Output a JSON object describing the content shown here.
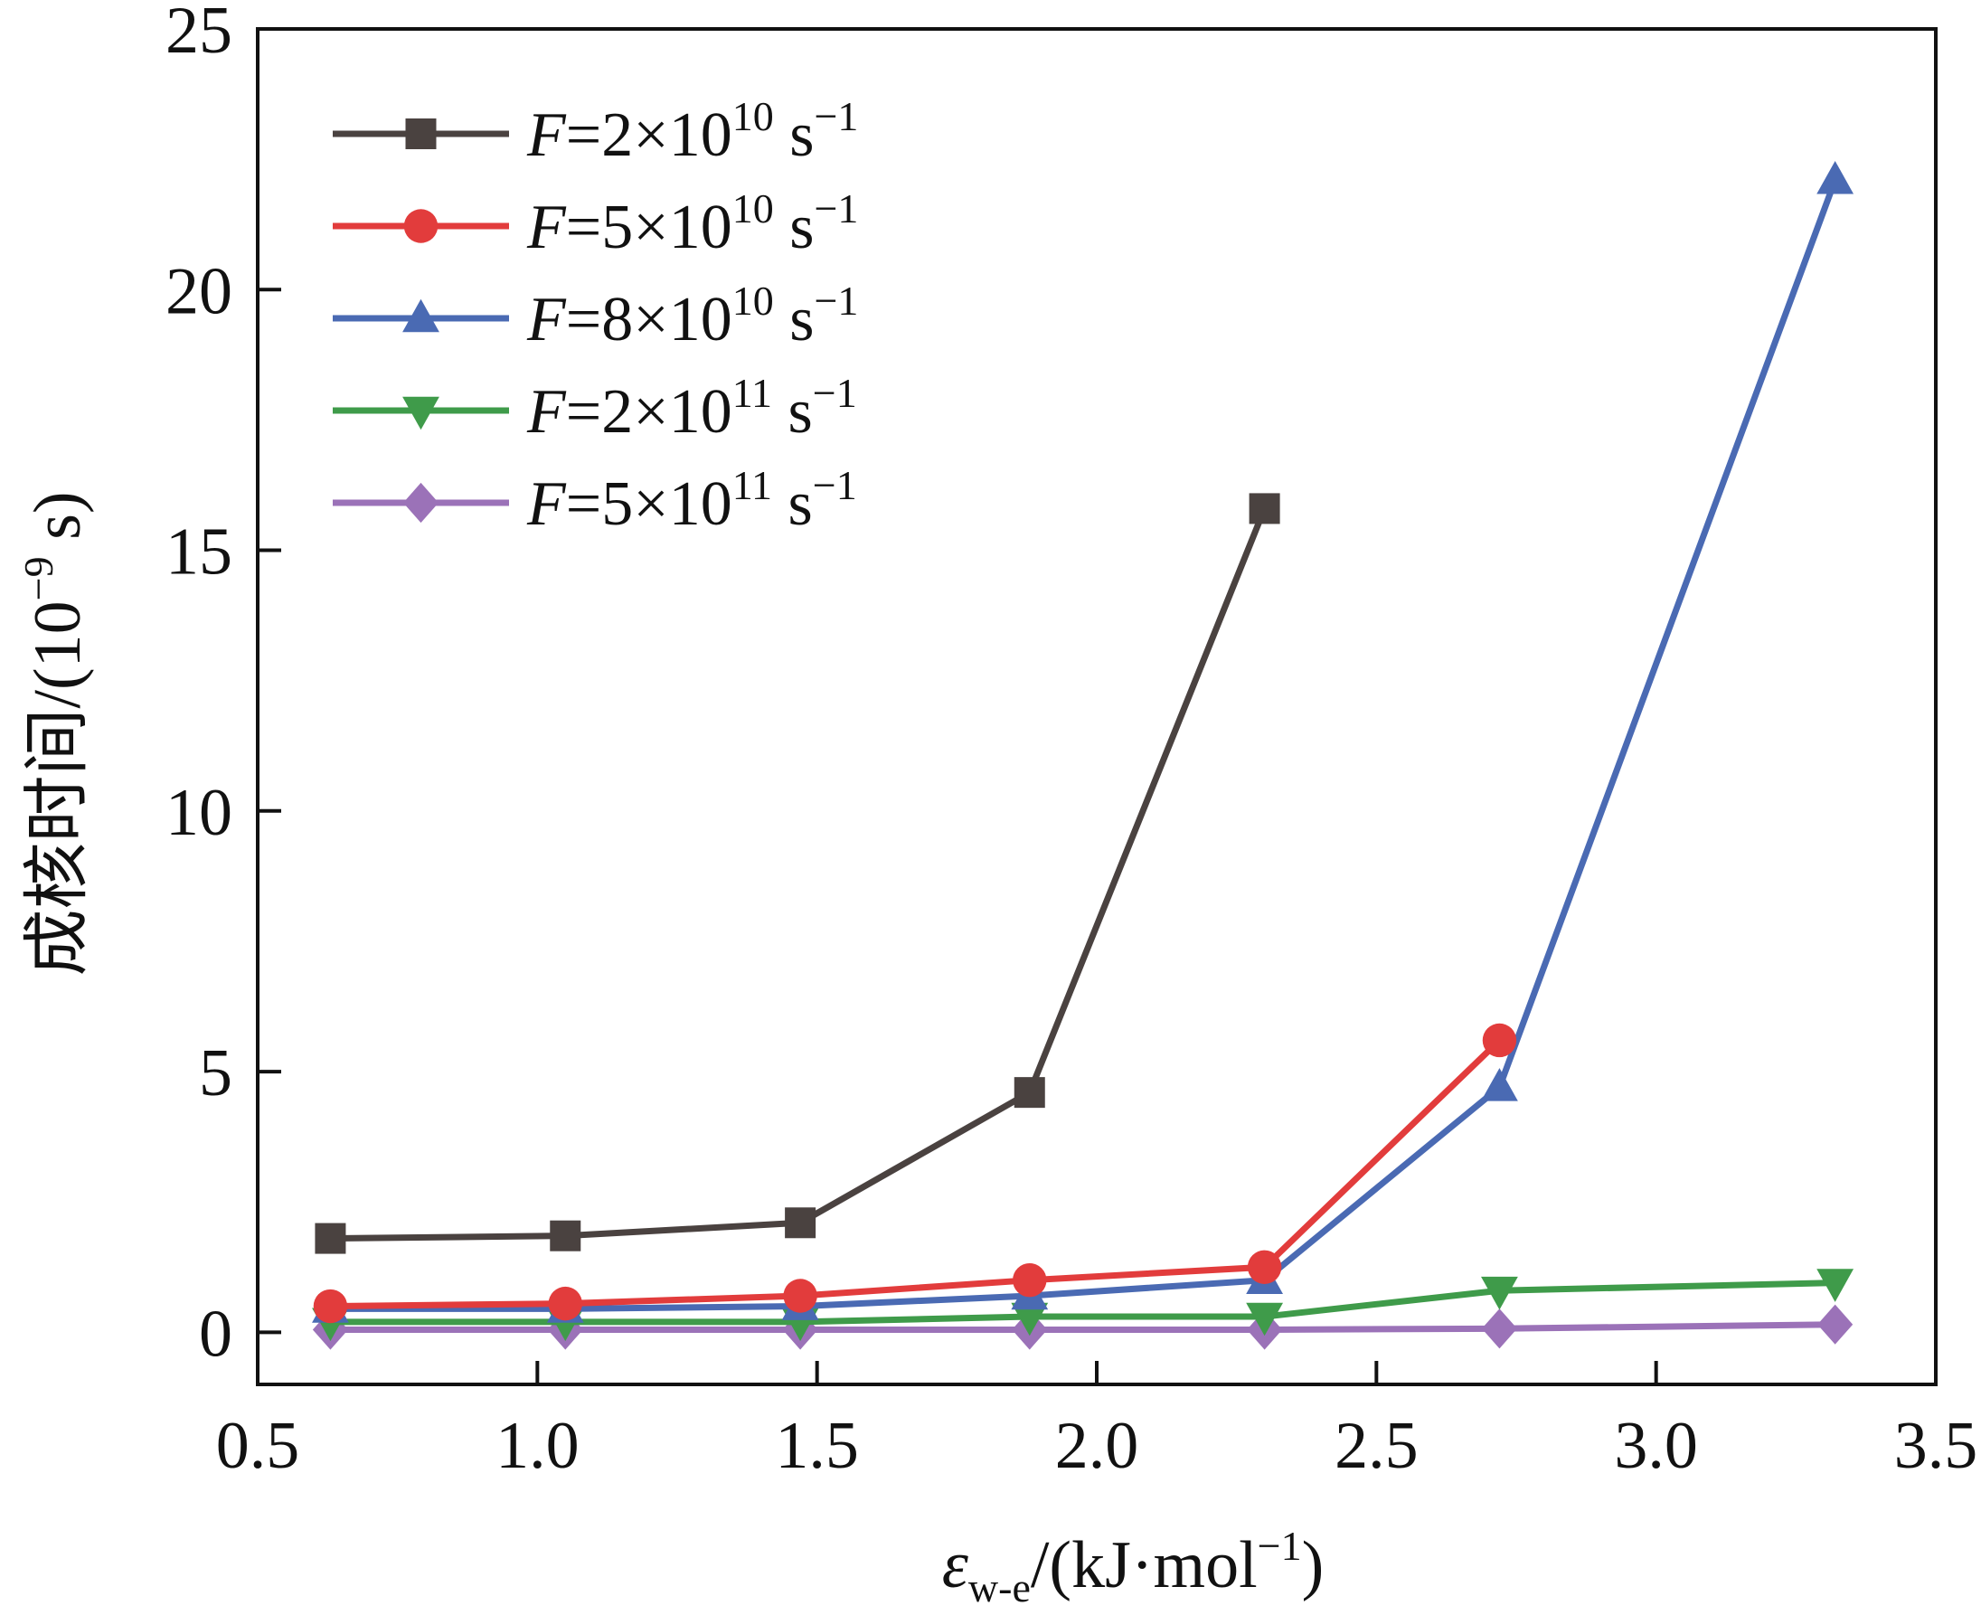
{
  "chart_data": {
    "type": "line",
    "title": "",
    "xlim": [
      0.5,
      3.5
    ],
    "ylim": [
      -1,
      25
    ],
    "xticks": [
      0.5,
      1.0,
      1.5,
      2.0,
      2.5,
      3.0,
      3.5
    ],
    "xtick_labels": [
      "0.5",
      "1.0",
      "1.5",
      "2.0",
      "2.5",
      "3.0",
      "3.5"
    ],
    "yticks": [
      0,
      5,
      10,
      15,
      20,
      25
    ],
    "ytick_labels": [
      "0",
      "5",
      "10",
      "15",
      "20",
      "25"
    ],
    "xlabel": {
      "symbol": "ε",
      "subscript": "w-e",
      "mid": "/(kJ·mol",
      "superscript": "−1",
      "end": ")"
    },
    "ylabel": {
      "main": "成核时间/(10",
      "superscript": "−9",
      "end": " s)"
    },
    "legend_position": "top-left",
    "series": [
      {
        "name": "F=2×10^10 s^-1",
        "label_var": "F",
        "label_eq": "=2×10",
        "label_exp": "10",
        "label_unit": " s",
        "label_unit_exp": "−1",
        "color": "#4a4240",
        "marker": "square",
        "x": [
          0.63,
          1.05,
          1.47,
          1.88,
          2.3
        ],
        "y": [
          1.8,
          1.85,
          2.1,
          4.6,
          15.8
        ]
      },
      {
        "name": "F=5×10^10 s^-1",
        "label_var": "F",
        "label_eq": "=5×10",
        "label_exp": "10",
        "label_unit": " s",
        "label_unit_exp": "−1",
        "color": "#e23c3c",
        "marker": "circle",
        "x": [
          0.63,
          1.05,
          1.47,
          1.88,
          2.3,
          2.72
        ],
        "y": [
          0.5,
          0.55,
          0.7,
          1.0,
          1.25,
          5.6
        ]
      },
      {
        "name": "F=8×10^10 s^-1",
        "label_var": "F",
        "label_eq": "=8×10",
        "label_exp": "10",
        "label_unit": " s",
        "label_unit_exp": "−1",
        "color": "#4a6ab3",
        "marker": "triangle-up",
        "x": [
          0.63,
          1.05,
          1.47,
          1.88,
          2.3,
          2.72,
          3.32
        ],
        "y": [
          0.45,
          0.45,
          0.5,
          0.7,
          1.0,
          4.7,
          22.1
        ]
      },
      {
        "name": "F=2×10^11 s^-1",
        "label_var": "F",
        "label_eq": "=2×10",
        "label_exp": "11",
        "label_unit": " s",
        "label_unit_exp": "−1",
        "color": "#3f9b4a",
        "marker": "triangle-down",
        "x": [
          0.63,
          1.05,
          1.47,
          1.88,
          2.3,
          2.72,
          3.32
        ],
        "y": [
          0.2,
          0.2,
          0.2,
          0.3,
          0.3,
          0.8,
          0.95
        ]
      },
      {
        "name": "F=5×10^11 s^-1",
        "label_var": "F",
        "label_eq": "=5×10",
        "label_exp": "11",
        "label_unit": " s",
        "label_unit_exp": "−1",
        "color": "#9b72b8",
        "marker": "diamond",
        "x": [
          0.63,
          1.05,
          1.47,
          1.88,
          2.3,
          2.72,
          3.32
        ],
        "y": [
          0.05,
          0.05,
          0.05,
          0.05,
          0.05,
          0.07,
          0.15
        ]
      }
    ]
  }
}
